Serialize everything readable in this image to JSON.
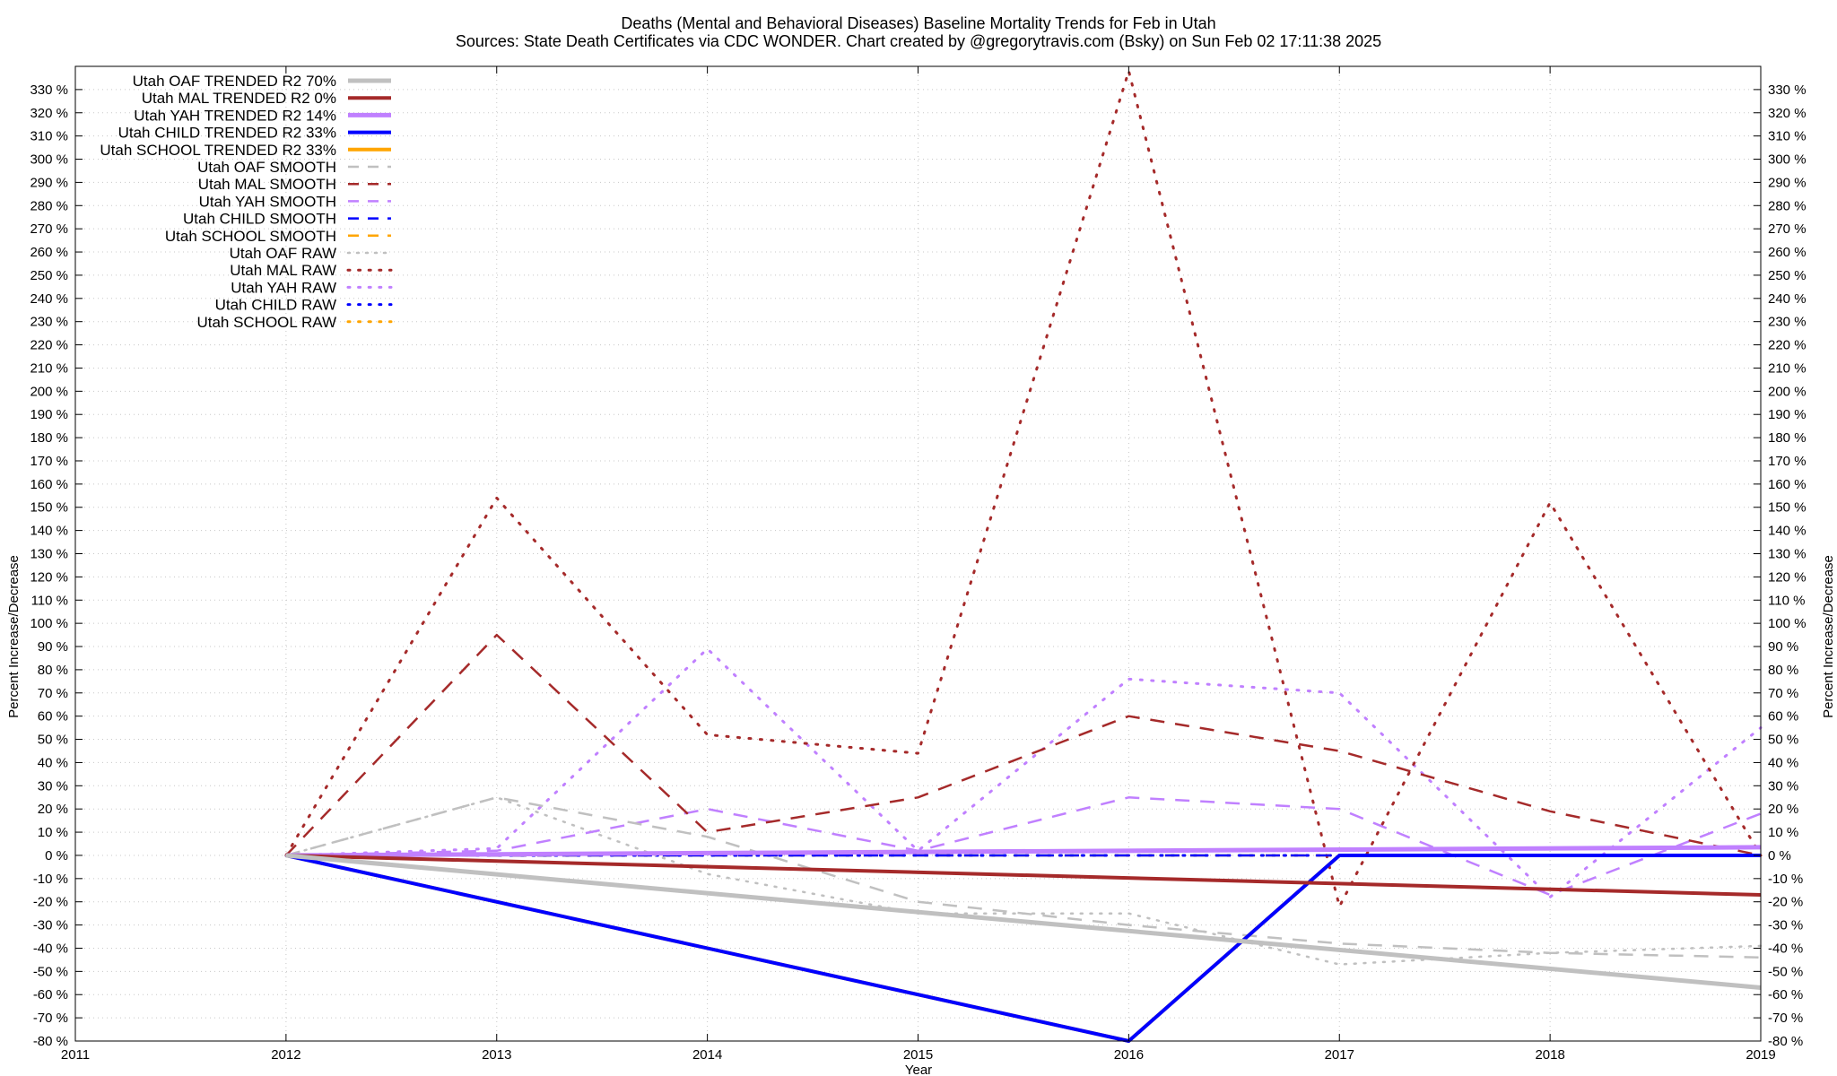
{
  "chart_data": {
    "type": "line",
    "title": "Deaths (Mental and Behavioral Diseases)  Baseline Mortality Trends for Feb in Utah",
    "subtitle": "Sources: State Death Certificates via CDC WONDER.              Chart created by @gregorytravis.com (Bsky) on Sun Feb 02 17:11:38 2025",
    "xlabel": "Year",
    "ylabel": "Percent Increase/Decrease",
    "y2label": "Percent Increase/Decrease",
    "xlim": [
      2011,
      2019
    ],
    "ylim": [
      -80,
      340
    ],
    "x_ticks": [
      "2011",
      "2012",
      "2013",
      "2014",
      "2015",
      "2016",
      "2017",
      "2018",
      "2019"
    ],
    "y_ticks": [
      "-80 %",
      "-70 %",
      "-60 %",
      "-50 %",
      "-40 %",
      "-30 %",
      "-20 %",
      "-10 %",
      "0 %",
      "10 %",
      "20 %",
      "30 %",
      "40 %",
      "50 %",
      "60 %",
      "70 %",
      "80 %",
      "90 %",
      "100 %",
      "110 %",
      "120 %",
      "130 %",
      "140 %",
      "150 %",
      "160 %",
      "170 %",
      "180 %",
      "190 %",
      "200 %",
      "210 %",
      "220 %",
      "230 %",
      "240 %",
      "250 %",
      "260 %",
      "270 %",
      "280 %",
      "290 %",
      "300 %",
      "310 %",
      "320 %",
      "330 %"
    ],
    "grid": true,
    "legend_position": "top-left",
    "series": [
      {
        "name": "Utah OAF TRENDED R2  70%",
        "style": "solid",
        "width": 5,
        "color": "#c0c0c0",
        "x": [
          2012,
          2019
        ],
        "y": [
          0,
          -57
        ]
      },
      {
        "name": "Utah MAL TRENDED R2   0%",
        "style": "solid",
        "width": 4,
        "color": "#a52a2a",
        "x": [
          2012,
          2019
        ],
        "y": [
          0,
          -17
        ]
      },
      {
        "name": "Utah YAH TRENDED R2  14%",
        "style": "solid",
        "width": 5,
        "color": "#c080ff",
        "x": [
          2012,
          2019
        ],
        "y": [
          0,
          3.5
        ]
      },
      {
        "name": "Utah CHILD TRENDED R2  33%",
        "style": "solid",
        "width": 4,
        "color": "#0000ff",
        "x": [
          2012,
          2016,
          2017,
          2019
        ],
        "y": [
          0,
          -80,
          0,
          0
        ]
      },
      {
        "name": "Utah SCHOOL TRENDED R2  33%",
        "style": "solid",
        "width": 4,
        "color": "#ffa500",
        "x": [
          2012,
          2016,
          2017,
          2019
        ],
        "y": [
          0,
          -80,
          0,
          0
        ]
      },
      {
        "name": "Utah OAF SMOOTH",
        "style": "dash",
        "width": 2.5,
        "color": "#c0c0c0",
        "x": [
          2012,
          2013,
          2014,
          2015,
          2016,
          2017,
          2018,
          2019
        ],
        "y": [
          0,
          25,
          8,
          -20,
          -30,
          -38,
          -42,
          -44
        ]
      },
      {
        "name": "Utah MAL SMOOTH",
        "style": "dash",
        "width": 2.5,
        "color": "#a52a2a",
        "x": [
          2012,
          2013,
          2014,
          2015,
          2016,
          2017,
          2018,
          2019
        ],
        "y": [
          0,
          95,
          10,
          25,
          60,
          45,
          19,
          0
        ]
      },
      {
        "name": "Utah YAH SMOOTH",
        "style": "dash",
        "width": 2.5,
        "color": "#c080ff",
        "x": [
          2012,
          2013,
          2014,
          2015,
          2016,
          2017,
          2018,
          2019
        ],
        "y": [
          0,
          2,
          20,
          2,
          25,
          20,
          -17,
          18
        ]
      },
      {
        "name": "Utah CHILD SMOOTH",
        "style": "dash",
        "width": 2.5,
        "color": "#0000ff",
        "x": [
          2012,
          2013,
          2014,
          2015,
          2016,
          2017,
          2018,
          2019
        ],
        "y": [
          0,
          0,
          0,
          0,
          0,
          0,
          0,
          0
        ]
      },
      {
        "name": "Utah SCHOOL SMOOTH",
        "style": "dash",
        "width": 2.5,
        "color": "#ffa500",
        "x": [
          2012,
          2013,
          2014,
          2015,
          2016,
          2017,
          2018,
          2019
        ],
        "y": [
          0,
          0,
          0,
          0,
          0,
          0,
          0,
          0
        ]
      },
      {
        "name": "Utah OAF RAW",
        "style": "dot",
        "width": 2.5,
        "color": "#c0c0c0",
        "x": [
          2012,
          2013,
          2014,
          2015,
          2016,
          2017,
          2018,
          2019
        ],
        "y": [
          0,
          25,
          -8,
          -25,
          -25,
          -47,
          -42,
          -39
        ]
      },
      {
        "name": "Utah MAL RAW",
        "style": "dot",
        "width": 3,
        "color": "#a52a2a",
        "x": [
          2012,
          2013,
          2014,
          2015,
          2016,
          2017,
          2018,
          2019
        ],
        "y": [
          0,
          154,
          52,
          44,
          338,
          -22,
          152,
          0
        ]
      },
      {
        "name": "Utah YAH RAW",
        "style": "dot",
        "width": 3,
        "color": "#c080ff",
        "x": [
          2012,
          2013,
          2014,
          2015,
          2016,
          2017,
          2018,
          2019
        ],
        "y": [
          0,
          3,
          89,
          2,
          76,
          70,
          -18,
          55
        ]
      },
      {
        "name": "Utah CHILD RAW",
        "style": "dot",
        "width": 3,
        "color": "#0000ff",
        "x": [
          2012,
          2013,
          2014,
          2015,
          2016,
          2017,
          2018,
          2019
        ],
        "y": [
          0,
          0,
          0,
          0,
          0,
          0,
          0,
          0
        ]
      },
      {
        "name": "Utah SCHOOL RAW",
        "style": "dot",
        "width": 3,
        "color": "#ffa500",
        "x": [
          2012,
          2013,
          2014,
          2015,
          2016,
          2017,
          2018,
          2019
        ],
        "y": [
          0,
          0,
          0,
          0,
          0,
          0,
          0,
          0
        ]
      }
    ]
  }
}
